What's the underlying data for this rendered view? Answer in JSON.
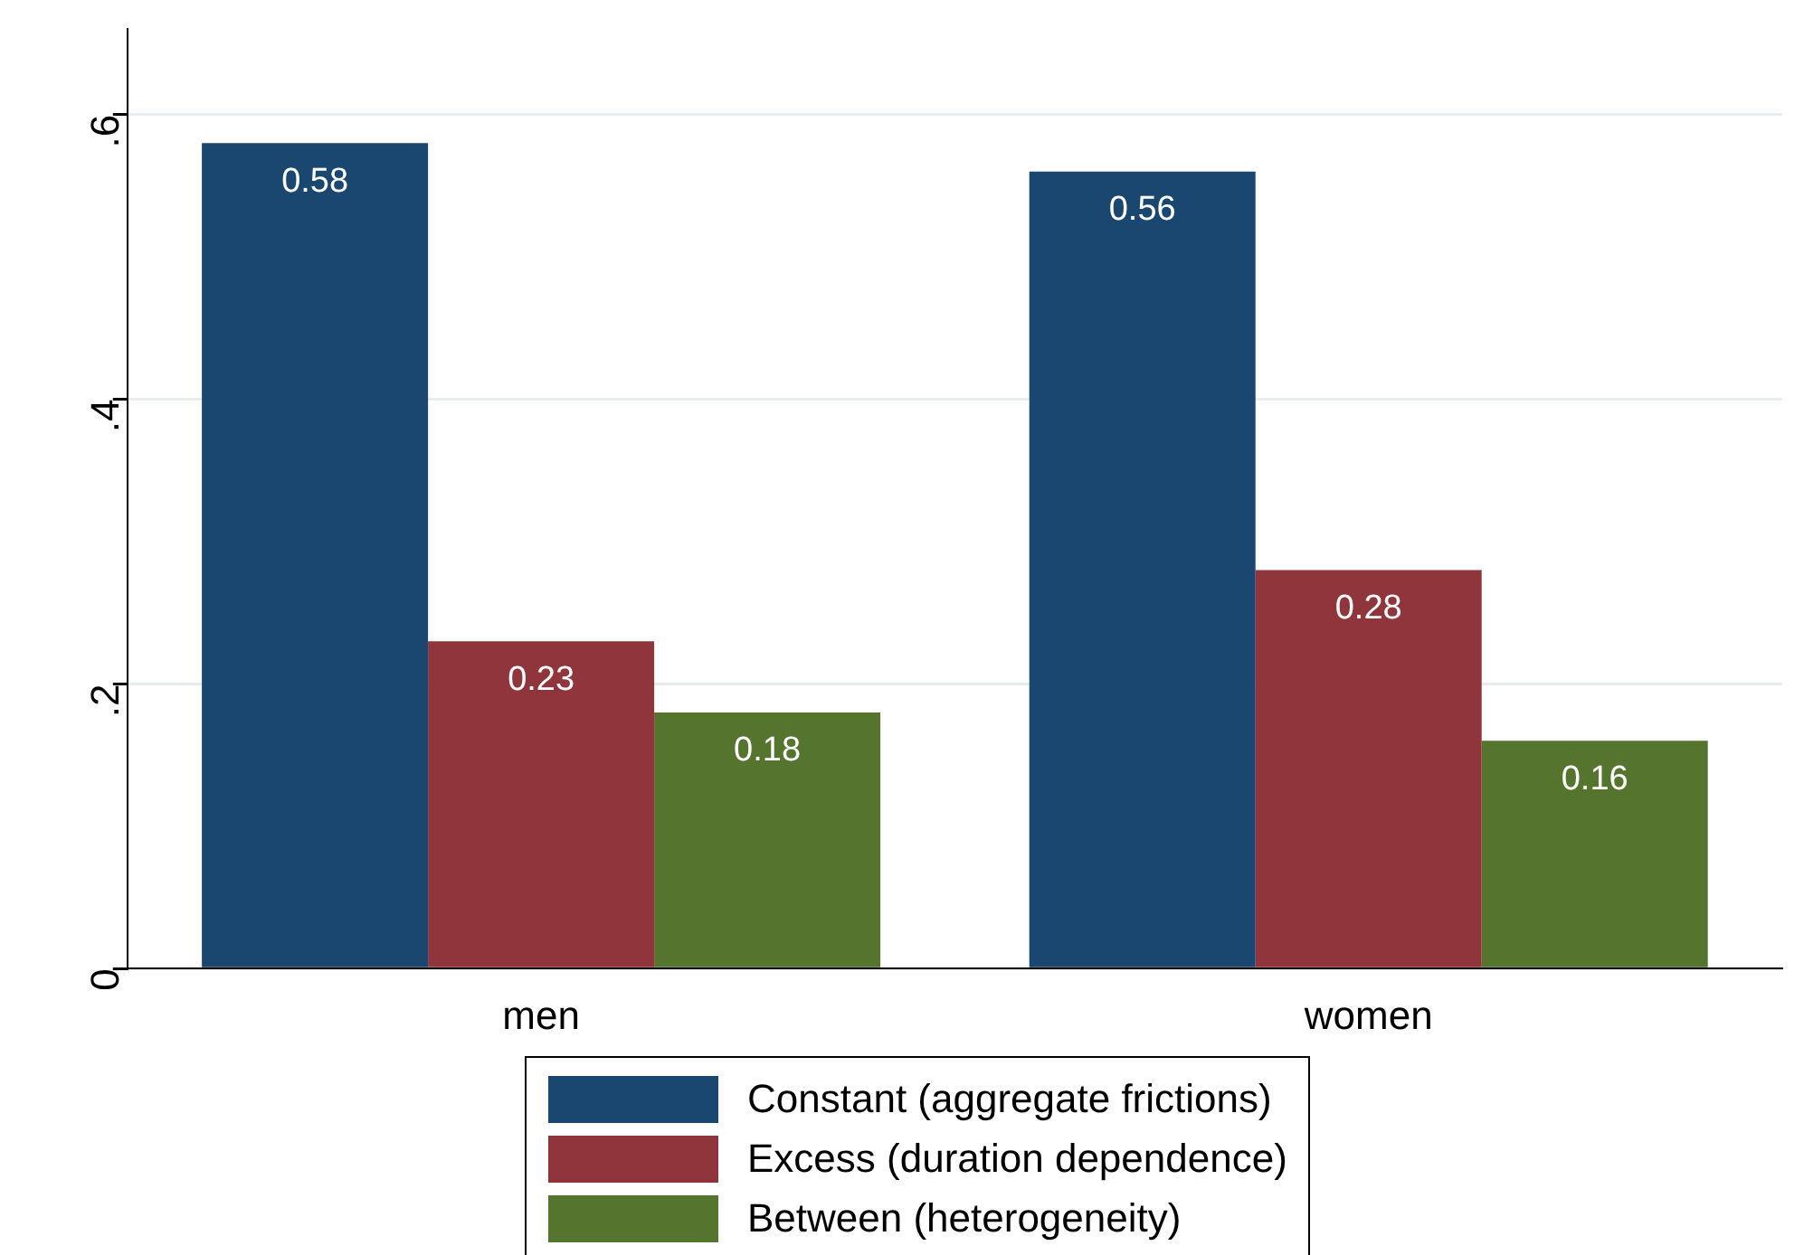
{
  "chart_data": {
    "type": "bar",
    "categories": [
      "men",
      "women"
    ],
    "series": [
      {
        "name": "Constant (aggregate frictions)",
        "color": "#1a476f",
        "values": [
          0.58,
          0.56
        ]
      },
      {
        "name": "Excess (duration dependence)",
        "color": "#90353b",
        "values": [
          0.23,
          0.28
        ]
      },
      {
        "name": "Between (heterogeneity)",
        "color": "#55752f",
        "values": [
          0.18,
          0.16
        ]
      }
    ],
    "ylim": [
      0,
      0.66
    ],
    "yticks": [
      0,
      {
        "value": 0.2,
        "label": ".2"
      },
      {
        "value": 0.4,
        "label": ".4"
      },
      {
        "value": 0.6,
        "label": ".6"
      }
    ],
    "grid": "y",
    "legend": "bottom",
    "data_labels": true
  }
}
